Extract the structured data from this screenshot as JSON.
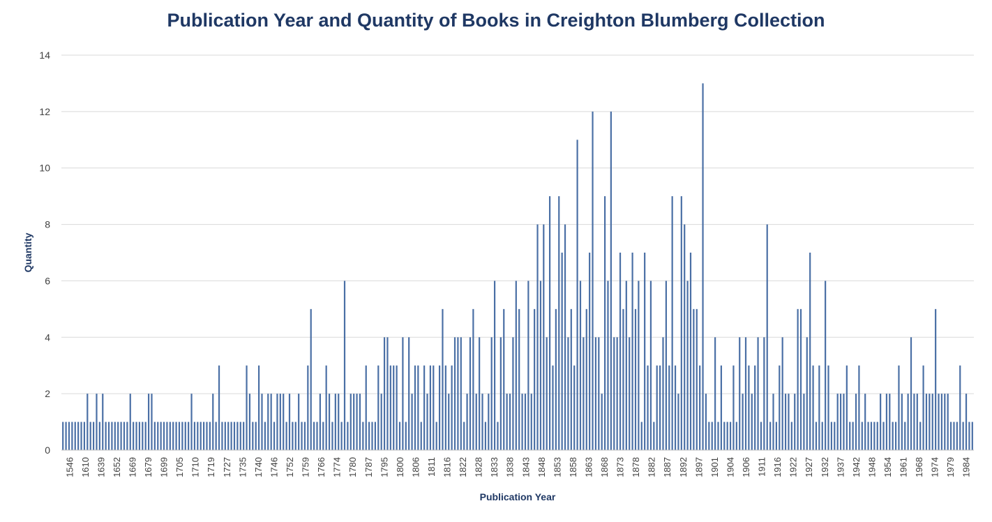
{
  "chart_data": {
    "type": "bar",
    "title": "Publication Year and Quantity of Books in Creighton Blumberg Collection",
    "xlabel": "Publication Year",
    "ylabel": "Quantity",
    "ylim": [
      0,
      14
    ],
    "yticks": [
      "0",
      "2",
      "4",
      "6",
      "8",
      "10",
      "12",
      "14"
    ],
    "grid": "horizontal",
    "legend": "none",
    "bar_color": "#4A6FA5",
    "tick_labels": [
      "1546",
      "1610",
      "1639",
      "1652",
      "1669",
      "1679",
      "1699",
      "1705",
      "1710",
      "1719",
      "1727",
      "1735",
      "1740",
      "1746",
      "1752",
      "1759",
      "1766",
      "1774",
      "1780",
      "1787",
      "1795",
      "1800",
      "1806",
      "1811",
      "1816",
      "1822",
      "1828",
      "1833",
      "1838",
      "1843",
      "1848",
      "1853",
      "1858",
      "1863",
      "1868",
      "1873",
      "1878",
      "1882",
      "1887",
      "1892",
      "1897",
      "1901",
      "1904",
      "1906",
      "1911",
      "1916",
      "1922",
      "1927",
      "1932",
      "1937",
      "1942",
      "1948",
      "1954",
      "1961",
      "1968",
      "1974",
      "1979",
      "1984"
    ],
    "values": [
      1,
      1,
      1,
      1,
      1,
      1,
      1,
      1,
      2,
      1,
      1,
      2,
      1,
      2,
      1,
      1,
      1,
      1,
      1,
      1,
      1,
      1,
      2,
      1,
      1,
      1,
      1,
      1,
      2,
      2,
      1,
      1,
      1,
      1,
      1,
      1,
      1,
      1,
      1,
      1,
      1,
      1,
      2,
      1,
      1,
      1,
      1,
      1,
      1,
      2,
      1,
      3,
      1,
      1,
      1,
      1,
      1,
      1,
      1,
      1,
      3,
      2,
      1,
      1,
      3,
      2,
      1,
      2,
      2,
      1,
      2,
      2,
      2,
      1,
      2,
      1,
      1,
      2,
      1,
      1,
      3,
      5,
      1,
      1,
      2,
      1,
      3,
      2,
      1,
      2,
      2,
      1,
      6,
      1,
      2,
      2,
      2,
      2,
      1,
      3,
      1,
      1,
      1,
      3,
      2,
      4,
      4,
      3,
      3,
      3,
      1,
      4,
      1,
      4,
      2,
      3,
      3,
      1,
      3,
      2,
      3,
      3,
      1,
      3,
      5,
      3,
      2,
      3,
      4,
      4,
      4,
      1,
      2,
      4,
      5,
      2,
      4,
      2,
      1,
      2,
      4,
      6,
      1,
      4,
      5,
      2,
      2,
      4,
      6,
      5,
      2,
      2,
      6,
      2,
      5,
      8,
      6,
      8,
      4,
      9,
      3,
      5,
      9,
      7,
      8,
      4,
      5,
      3,
      11,
      6,
      4,
      5,
      7,
      12,
      4,
      4,
      2,
      9,
      6,
      12,
      4,
      4,
      7,
      5,
      6,
      4,
      7,
      5,
      6,
      1,
      7,
      3,
      6,
      1,
      3,
      3,
      4,
      6,
      3,
      9,
      3,
      2,
      9,
      8,
      6,
      7,
      5,
      5,
      3,
      13,
      2,
      1,
      1,
      4,
      1,
      3,
      1,
      1,
      1,
      3,
      1,
      4,
      2,
      4,
      3,
      2,
      3,
      4,
      1,
      4,
      8,
      1,
      2,
      1,
      3,
      4,
      2,
      2,
      1,
      2,
      5,
      5,
      2,
      4,
      7,
      3,
      1,
      3,
      1,
      6,
      3,
      1,
      1,
      2,
      2,
      2,
      3,
      1,
      1,
      2,
      3,
      1,
      2,
      1,
      1,
      1,
      1,
      2,
      1,
      2,
      2,
      1,
      1,
      3,
      2,
      1,
      2,
      4,
      2,
      2,
      1,
      3,
      2,
      2,
      2,
      5,
      2,
      2,
      2,
      2,
      1,
      1,
      1,
      3,
      1,
      2,
      1,
      1
    ]
  }
}
